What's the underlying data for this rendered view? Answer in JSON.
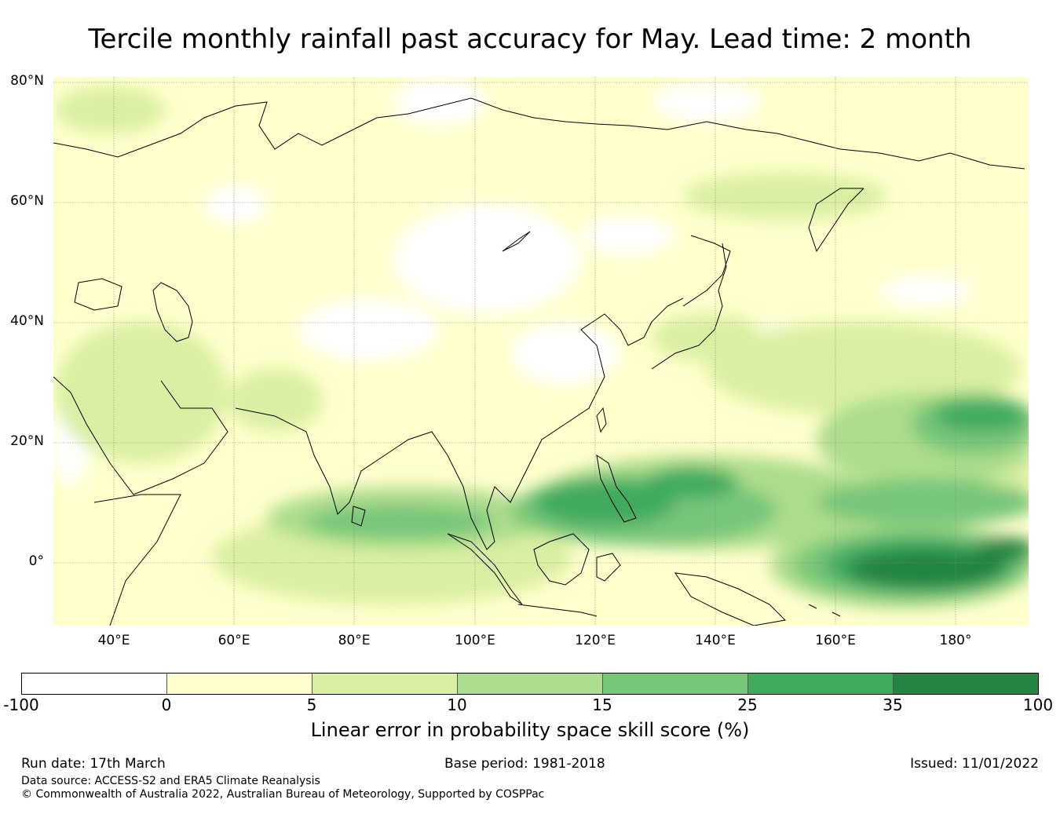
{
  "title": "Tercile monthly rainfall past accuracy for May. Lead time: 2 month",
  "map": {
    "lat_labels": [
      "80°N",
      "60°N",
      "40°N",
      "20°N",
      "0°"
    ],
    "lon_labels": [
      "40°E",
      "60°E",
      "80°E",
      "100°E",
      "120°E",
      "140°E",
      "160°E",
      "180°"
    ],
    "extent": {
      "lon_min": 30,
      "lon_max": 192,
      "lat_min": -10,
      "lat_max": 81
    }
  },
  "colorbar": {
    "ticks": [
      "-100",
      "0",
      "5",
      "10",
      "15",
      "25",
      "35",
      "100"
    ],
    "colors": [
      "#ffffff",
      "#ffffcc",
      "#d9f0a3",
      "#addd8e",
      "#78c679",
      "#41ab5d",
      "#238443"
    ],
    "label": "Linear error in probability space skill score (%)"
  },
  "footer": {
    "run_date": "Run date: 17th March",
    "base_period": "Base period: 1981-2018",
    "issued": "Issued: 11/01/2022",
    "data_source": "Data source: ACCESS-S2 and ERA5 Climate Reanalysis",
    "copyright": "© Commonwealth of Australia 2022, Australian Bureau of Meteorology, Supported by COSPPac"
  }
}
